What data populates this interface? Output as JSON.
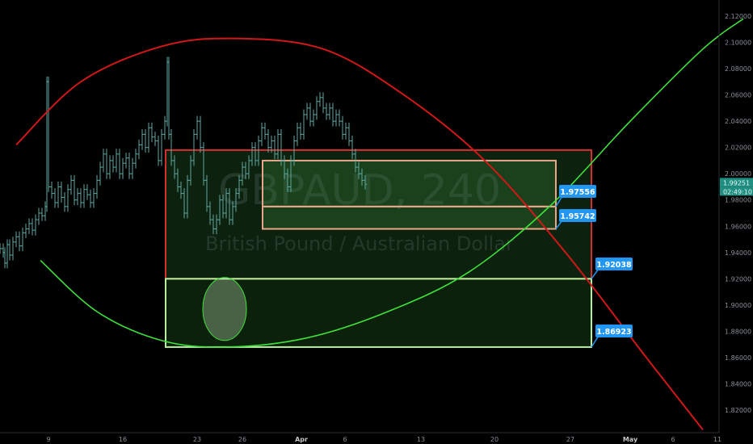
{
  "chart_data": {
    "type": "candlestick",
    "symbol": "GBPAUD",
    "timeframe": "240",
    "symbol_description": "British Pound / Australian Dollar",
    "y_axis": {
      "range": [
        1.805,
        2.13
      ],
      "ticks": [
        "2.12000",
        "2.10000",
        "2.08000",
        "2.06000",
        "2.04000",
        "2.02000",
        "2.00000",
        "1.98000",
        "1.96000",
        "1.94000",
        "1.92000",
        "1.90000",
        "1.88000",
        "1.86000",
        "1.84000",
        "1.82000"
      ],
      "last_price": "1.99251",
      "countdown": "02:49:10"
    },
    "x_axis": {
      "ticks": [
        "9",
        "16",
        "23",
        "26",
        "Apr",
        "6",
        "13",
        "20",
        "27",
        "May",
        "6",
        "11"
      ]
    },
    "price_labels": [
      "1.97556",
      "1.95742",
      "1.92038",
      "1.86923"
    ],
    "price_series": [
      [
        0,
        1.943
      ],
      [
        4,
        1.94
      ],
      [
        6,
        1.932
      ],
      [
        9,
        1.946
      ],
      [
        12,
        1.938
      ],
      [
        16,
        1.948
      ],
      [
        20,
        1.952
      ],
      [
        24,
        1.945
      ],
      [
        28,
        1.955
      ],
      [
        32,
        1.958
      ],
      [
        36,
        1.962
      ],
      [
        40,
        1.957
      ],
      [
        44,
        1.965
      ],
      [
        48,
        1.97
      ],
      [
        52,
        1.968
      ],
      [
        56,
        1.975
      ],
      [
        58,
        2.07
      ],
      [
        60,
        1.99
      ],
      [
        64,
        1.985
      ],
      [
        68,
        1.978
      ],
      [
        72,
        1.99
      ],
      [
        76,
        1.982
      ],
      [
        80,
        1.975
      ],
      [
        84,
        1.988
      ],
      [
        88,
        1.995
      ],
      [
        92,
        1.98
      ],
      [
        96,
        1.985
      ],
      [
        100,
        1.978
      ],
      [
        104,
        1.988
      ],
      [
        108,
        1.984
      ],
      [
        112,
        1.978
      ],
      [
        116,
        1.985
      ],
      [
        120,
        1.995
      ],
      [
        124,
        2.005
      ],
      [
        128,
        2.015
      ],
      [
        132,
        2.0
      ],
      [
        136,
        2.01
      ],
      [
        140,
        2.005
      ],
      [
        144,
        2.015
      ],
      [
        148,
        2.0
      ],
      [
        152,
        2.008
      ],
      [
        156,
        2.012
      ],
      [
        160,
        2.0
      ],
      [
        164,
        2.008
      ],
      [
        168,
        2.015
      ],
      [
        172,
        2.022
      ],
      [
        176,
        2.03
      ],
      [
        180,
        2.02
      ],
      [
        184,
        2.035
      ],
      [
        188,
        2.028
      ],
      [
        192,
        2.025
      ],
      [
        196,
        2.01
      ],
      [
        200,
        2.03
      ],
      [
        204,
        2.04
      ],
      [
        207,
        2.085
      ],
      [
        209,
        2.03
      ],
      [
        212,
        2.01
      ],
      [
        216,
        2.0
      ],
      [
        220,
        1.99
      ],
      [
        224,
        1.985
      ],
      [
        228,
        1.97
      ],
      [
        232,
        1.995
      ],
      [
        236,
        2.01
      ],
      [
        240,
        2.03
      ],
      [
        244,
        2.04
      ],
      [
        248,
        2.02
      ],
      [
        252,
        1.995
      ],
      [
        256,
        1.975
      ],
      [
        260,
        1.965
      ],
      [
        264,
        1.958
      ],
      [
        268,
        1.965
      ],
      [
        272,
        1.98
      ],
      [
        276,
        1.97
      ],
      [
        280,
        1.985
      ],
      [
        284,
        1.965
      ],
      [
        288,
        1.975
      ],
      [
        292,
        1.985
      ],
      [
        296,
        1.995
      ],
      [
        300,
        2.005
      ],
      [
        304,
        2.0
      ],
      [
        308,
        2.01
      ],
      [
        312,
        2.02
      ],
      [
        316,
        2.01
      ],
      [
        320,
        2.025
      ],
      [
        324,
        2.035
      ],
      [
        328,
        2.03
      ],
      [
        332,
        2.02
      ],
      [
        336,
        2.025
      ],
      [
        340,
        2.015
      ],
      [
        344,
        2.03
      ],
      [
        348,
        2.01
      ],
      [
        352,
        2.0
      ],
      [
        356,
        1.99
      ],
      [
        360,
        2.01
      ],
      [
        364,
        2.025
      ],
      [
        368,
        2.035
      ],
      [
        372,
        2.03
      ],
      [
        376,
        2.045
      ],
      [
        380,
        2.05
      ],
      [
        384,
        2.04
      ],
      [
        388,
        2.045
      ],
      [
        392,
        2.055
      ],
      [
        396,
        2.058
      ],
      [
        400,
        2.05
      ],
      [
        404,
        2.045
      ],
      [
        408,
        2.05
      ],
      [
        412,
        2.04
      ],
      [
        416,
        2.045
      ],
      [
        420,
        2.04
      ],
      [
        424,
        2.03
      ],
      [
        428,
        2.035
      ],
      [
        432,
        2.025
      ],
      [
        436,
        2.015
      ],
      [
        440,
        2.005
      ],
      [
        444,
        2.0
      ],
      [
        448,
        1.995
      ],
      [
        452,
        1.992
      ]
    ],
    "drawings": {
      "zones": [
        {
          "type": "rect",
          "x1": 205,
          "x2": 732,
          "top": 2.018,
          "bottom": 1.92,
          "stroke": "#d32f2f",
          "fill": "rgba(35,95,40,0.35)"
        },
        {
          "type": "rect",
          "x1": 205,
          "x2": 732,
          "top": 1.92,
          "bottom": 1.868,
          "stroke": "#b6f0a0",
          "fill": "rgba(40,110,40,0.30)"
        },
        {
          "type": "rect",
          "x1": 325,
          "x2": 688,
          "top": 2.01,
          "bottom": 1.975,
          "stroke": "#e8a78a",
          "fill": "rgba(60,140,60,0.30)"
        },
        {
          "type": "rect",
          "x1": 325,
          "x2": 688,
          "top": 1.975,
          "bottom": 1.958,
          "stroke": "#e8a78a",
          "fill": "rgba(60,140,60,0.30)"
        }
      ],
      "red_arc": [
        [
          20,
          2.022
        ],
        [
          100,
          2.07
        ],
        [
          200,
          2.097
        ],
        [
          290,
          2.103
        ],
        [
          400,
          2.095
        ],
        [
          500,
          2.06
        ],
        [
          600,
          2.01
        ],
        [
          700,
          1.94
        ],
        [
          800,
          1.86
        ],
        [
          870,
          1.805
        ]
      ],
      "green_arc": [
        [
          50,
          1.934
        ],
        [
          120,
          1.895
        ],
        [
          200,
          1.873
        ],
        [
          280,
          1.868
        ],
        [
          380,
          1.875
        ],
        [
          480,
          1.895
        ],
        [
          580,
          1.925
        ],
        [
          680,
          1.975
        ],
        [
          780,
          2.04
        ],
        [
          870,
          2.095
        ],
        [
          920,
          2.118
        ]
      ],
      "ellipse": {
        "cx": 278,
        "cy": 1.897,
        "rx": 27,
        "ry_price": 0.024
      }
    }
  }
}
